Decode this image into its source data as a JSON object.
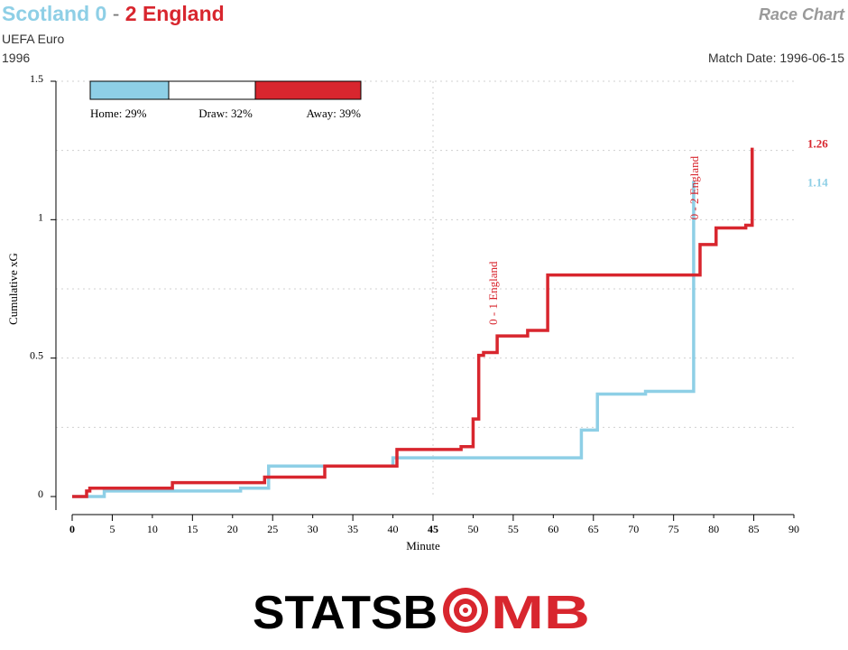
{
  "header": {
    "home_team": "Scotland",
    "home_score": "0",
    "separator": "-",
    "away_score": "2",
    "away_team": "England",
    "competition": "UEFA Euro",
    "season": "1996",
    "chart_name": "Race Chart",
    "match_date": "Match Date: 1996-06-15"
  },
  "colors": {
    "home": "#8ecfe6",
    "away": "#d8262e",
    "draw": "#ffffff"
  },
  "probabilities": {
    "home_label": "Home: 29%",
    "draw_label": "Draw: 32%",
    "away_label": "Away: 39%",
    "home": 0.29,
    "draw": 0.32,
    "away": 0.39
  },
  "logo": {
    "text_left": "STATSB",
    "text_right": "MB",
    "icon": "target-icon"
  },
  "chart_data": {
    "type": "line",
    "xlabel": "Minute",
    "ylabel": "Cumulative xG",
    "xlim": [
      0,
      90
    ],
    "ylim": [
      0,
      1.5
    ],
    "x_ticks": [
      0,
      5,
      15,
      25,
      35,
      45,
      55,
      65,
      75,
      85
    ],
    "x_ticks_minor": [
      10,
      20,
      30,
      40,
      50,
      60,
      70,
      80,
      90
    ],
    "y_ticks": [
      0,
      0.5,
      1,
      1.5
    ],
    "y_tick_labels": [
      "0",
      "0.5",
      "1",
      "1.5"
    ],
    "grid": true,
    "series": [
      {
        "name": "Scotland",
        "side": "home",
        "final_label": "1.14",
        "steps": [
          [
            0,
            0
          ],
          [
            4,
            0.02
          ],
          [
            21,
            0.03
          ],
          [
            24.5,
            0.11
          ],
          [
            31.5,
            0.11
          ],
          [
            40,
            0.14
          ],
          [
            63.5,
            0.24
          ],
          [
            65.5,
            0.37
          ],
          [
            71.5,
            0.38
          ],
          [
            77.5,
            1.14
          ]
        ]
      },
      {
        "name": "England",
        "side": "away",
        "final_label": "1.26",
        "steps": [
          [
            0,
            0
          ],
          [
            1.8,
            0.02
          ],
          [
            2.2,
            0.03
          ],
          [
            12.5,
            0.05
          ],
          [
            24,
            0.07
          ],
          [
            31.5,
            0.11
          ],
          [
            40.5,
            0.17
          ],
          [
            48.5,
            0.18
          ],
          [
            50,
            0.28
          ],
          [
            50.7,
            0.51
          ],
          [
            51.3,
            0.52
          ],
          [
            53,
            0.58
          ],
          [
            56.8,
            0.6
          ],
          [
            59.3,
            0.8
          ],
          [
            78.3,
            0.91
          ],
          [
            80.3,
            0.97
          ],
          [
            84,
            0.98
          ],
          [
            84.8,
            1.26
          ]
        ]
      }
    ],
    "annotations": [
      {
        "text": "0 - 1 England",
        "minute": 53.2,
        "y": 0.62
      },
      {
        "text": "0 - 2 England",
        "minute": 78.3,
        "y": 1.0
      }
    ]
  }
}
